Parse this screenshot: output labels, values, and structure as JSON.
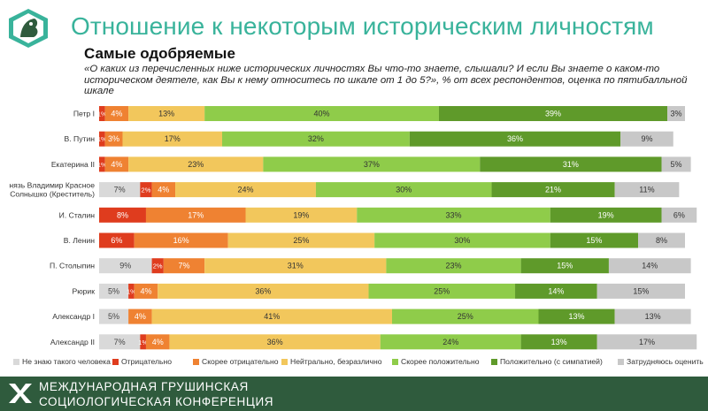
{
  "header": {
    "title": "Отношение к некоторым историческим личностям",
    "section": "Самые одобряемые",
    "question": "«О каких из перечисленных ниже исторических личностях Вы что-то знаете, слышали? И если Вы знаете о каком-то историческом деятеле, как Вы к нему относитесь по шкале от 1 до 5?», % от всех респондентов, оценка по пятибалльной шкале"
  },
  "footer": {
    "line1": "МЕЖДУНАРОДНАЯ ГРУШИНСКАЯ",
    "line2": "СОЦИОЛОГИЧЕСКАЯ КОНФЕРЕНЦИЯ"
  },
  "chart_data": {
    "type": "bar",
    "orientation": "horizontal",
    "stacked": true,
    "percent_stacked": true,
    "title": "Самые одобряемые",
    "categories": [
      "Петр I",
      "В. Путин",
      "Екатерина II",
      "Князь Владимир Красное Солнышко (Креститель)",
      "И. Сталин",
      "В. Ленин",
      "П. Столыпин",
      "Рюрик",
      "Александр I",
      "Александр II"
    ],
    "category_labels": [
      "Петр I",
      "В. Путин",
      "Екатерина II",
      "нязь Владимир Красное\nСолнышко (Креститель)",
      "И. Сталин",
      "В. Ленин",
      "П. Столыпин",
      "Рюрик",
      "Александр I",
      "Александр II"
    ],
    "series": [
      {
        "name": "Не знаю такого человека",
        "color": "#d9d9d9",
        "label_color": "#444444",
        "values": [
          0,
          0,
          0,
          7,
          0,
          0,
          9,
          5,
          5,
          7
        ]
      },
      {
        "name": "Отрицательно",
        "color": "#df3c1e",
        "label_color": "#ffffff",
        "values": [
          1,
          1,
          1,
          2,
          8,
          6,
          2,
          1,
          0,
          1
        ]
      },
      {
        "name": "Скорее отрицательно",
        "color": "#ef8232",
        "label_color": "#ffffff",
        "values": [
          4,
          3,
          4,
          4,
          17,
          16,
          7,
          4,
          4,
          4
        ]
      },
      {
        "name": "Нейтрально, безразлично",
        "color": "#f2c75c",
        "label_color": "#333333",
        "values": [
          13,
          17,
          23,
          24,
          19,
          25,
          31,
          36,
          41,
          36
        ]
      },
      {
        "name": "Скорее положительно",
        "color": "#8fcc4a",
        "label_color": "#333333",
        "values": [
          40,
          32,
          37,
          30,
          33,
          30,
          23,
          25,
          25,
          24
        ]
      },
      {
        "name": "Положительно (с симпатией)",
        "color": "#5f9a2a",
        "label_color": "#ffffff",
        "values": [
          39,
          36,
          31,
          21,
          19,
          15,
          15,
          14,
          13,
          13
        ]
      },
      {
        "name": "Затрудняюсь оценить",
        "color": "#c8c8c8",
        "label_color": "#333333",
        "values": [
          3,
          9,
          5,
          11,
          6,
          8,
          14,
          15,
          13,
          17
        ]
      }
    ],
    "value_suffix": "%",
    "xlim": [
      0,
      100
    ],
    "legend_position": "bottom",
    "grid": false
  }
}
